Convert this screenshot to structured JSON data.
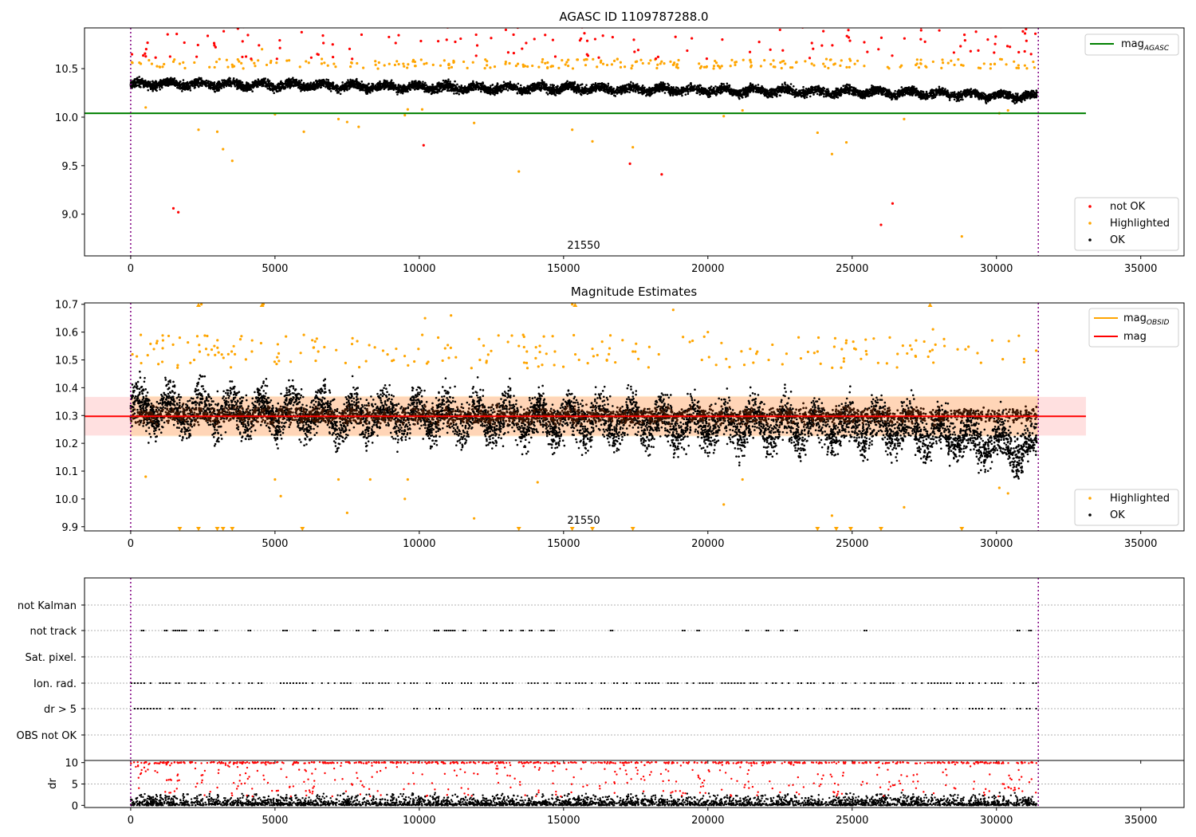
{
  "chart_data": [
    {
      "type": "scatter",
      "title": "AGASC ID 1109787288.0",
      "xlabel": "",
      "ylabel": "",
      "xlim": [
        -1600,
        36500
      ],
      "ylim": [
        8.57,
        10.92
      ],
      "xticks": [
        0,
        5000,
        10000,
        15000,
        20000,
        25000,
        30000,
        35000
      ],
      "yticks": [
        9.0,
        9.5,
        10.0,
        10.5
      ],
      "vlines": [
        0,
        31450
      ],
      "annotation": "21550",
      "annotation_x": 15750,
      "reference_line": {
        "name": "mag$_{AGASC}$",
        "value": 10.04,
        "x_range": [
          -1600,
          33100
        ],
        "color": "#008000"
      },
      "legend_top": "top-right",
      "legend_bottom": "bottom-right",
      "legend": [
        {
          "label": "mag",
          "sub": "AGASC",
          "kind": "line",
          "color": "#008000"
        },
        {
          "label": "not OK",
          "kind": "point",
          "color": "#ff0000"
        },
        {
          "label": "Highlighted",
          "kind": "point",
          "color": "#ffa500"
        },
        {
          "label": "OK",
          "kind": "point",
          "color": "#000000"
        }
      ],
      "series": [
        {
          "name": "OK",
          "color": "#000000",
          "x": [
            0,
            1500,
            3000,
            4500,
            6000,
            7500,
            9000,
            10500,
            12000,
            13500,
            15000,
            16500,
            18000,
            19500,
            21000,
            22500,
            24000,
            25500,
            27000,
            28500,
            30000,
            31400
          ],
          "values": [
            10.34,
            10.34,
            10.34,
            10.33,
            10.33,
            10.32,
            10.31,
            10.31,
            10.3,
            10.3,
            10.3,
            10.29,
            10.29,
            10.28,
            10.27,
            10.27,
            10.26,
            10.26,
            10.25,
            10.24,
            10.22,
            10.21
          ],
          "spread": 0.07
        },
        {
          "name": "Highlighted",
          "color": "#ffa500",
          "x": [
            60,
            350,
            520,
            1700,
            2350,
            3000,
            3200,
            3520,
            4550,
            5000,
            6000,
            7200,
            7500,
            7900,
            9500,
            9600,
            10100,
            11200,
            11900,
            13450,
            13600,
            15300,
            16000,
            17400,
            20550,
            21200,
            23800,
            24300,
            24800,
            26800,
            28800,
            30100,
            30400
          ],
          "values": [
            10.56,
            10.55,
            10.1,
            10.55,
            9.87,
            9.85,
            9.67,
            9.55,
            10.7,
            10.03,
            9.85,
            9.98,
            9.95,
            9.9,
            10.02,
            10.08,
            10.08,
            10.57,
            9.94,
            9.44,
            10.54,
            9.87,
            9.75,
            9.69,
            10.01,
            10.07,
            9.84,
            9.62,
            9.74,
            9.98,
            8.77,
            10.04,
            10.07
          ]
        },
        {
          "name": "not OK",
          "color": "#ff0000",
          "x": [
            1480,
            1650,
            7000,
            8000,
            10150,
            13000,
            17300,
            18400,
            20500,
            22500,
            26000,
            26400,
            29700,
            31200,
            31350
          ],
          "values": [
            9.06,
            9.02,
            10.75,
            10.85,
            9.71,
            10.9,
            9.52,
            9.41,
            10.8,
            10.9,
            8.89,
            9.11,
            10.8,
            10.65,
            10.86
          ]
        }
      ]
    },
    {
      "type": "scatter",
      "title": "Magnitude Estimates",
      "xlabel": "",
      "ylabel": "",
      "xlim": [
        -1600,
        36500
      ],
      "ylim": [
        9.885,
        10.705
      ],
      "xticks": [
        0,
        5000,
        10000,
        15000,
        20000,
        25000,
        30000,
        35000
      ],
      "yticks": [
        9.9,
        10.0,
        10.1,
        10.2,
        10.3,
        10.4,
        10.5,
        10.6,
        10.7
      ],
      "vlines": [
        0,
        31450
      ],
      "annotation": "21550",
      "annotation_x": 15750,
      "mag_line": {
        "value": 10.297,
        "x_range": [
          -1600,
          33100
        ],
        "color": "#ff0000"
      },
      "mag_band": {
        "low": 10.228,
        "high": 10.367,
        "x_range": [
          -1600,
          33100
        ]
      },
      "obsid_band": [
        {
          "x": [
            0,
            8500
          ],
          "low": 10.225,
          "high": 10.37
        },
        {
          "x": [
            8500,
            31450
          ],
          "low": 10.225,
          "high": 10.37
        }
      ],
      "legend_top": "top-right",
      "legend_bottom": "bottom-right",
      "legend": [
        {
          "label": "mag",
          "sub": "OBSID",
          "kind": "line",
          "color": "#ffa500"
        },
        {
          "label": "mag",
          "kind": "line",
          "color": "#ff0000"
        },
        {
          "label": "Highlighted",
          "kind": "point",
          "color": "#ffa500"
        },
        {
          "label": "OK",
          "kind": "point",
          "color": "#000000"
        }
      ],
      "series": [
        {
          "name": "OK",
          "color": "#000000",
          "x": [
            0,
            1500,
            3000,
            4500,
            6000,
            7500,
            9000,
            10500,
            12000,
            13500,
            15000,
            16500,
            18000,
            19500,
            21000,
            22500,
            24000,
            25500,
            27000,
            28500,
            30000,
            31400
          ],
          "values": [
            10.33,
            10.32,
            10.32,
            10.31,
            10.31,
            10.3,
            10.3,
            10.3,
            10.29,
            10.29,
            10.28,
            10.28,
            10.28,
            10.27,
            10.27,
            10.26,
            10.26,
            10.26,
            10.25,
            10.23,
            10.2,
            10.18
          ],
          "spread": 0.12
        },
        {
          "name": "Highlighted",
          "color": "#ffa500",
          "x": [
            60,
            350,
            520,
            900,
            1700,
            2200,
            2450,
            2900,
            3500,
            4200,
            4600,
            5000,
            5200,
            6000,
            6500,
            7200,
            7500,
            8300,
            9200,
            9500,
            9600,
            10200,
            11100,
            11900,
            12100,
            13450,
            13600,
            14100,
            14700,
            15300,
            16000,
            16500,
            17400,
            18300,
            18800,
            20000,
            20550,
            21200,
            23800,
            24300,
            24800,
            25500,
            26800,
            27800,
            28200,
            30100,
            30400
          ],
          "values": [
            10.52,
            10.59,
            10.08,
            10.56,
            10.58,
            10.5,
            10.7,
            10.55,
            10.53,
            10.53,
            10.7,
            10.07,
            10.01,
            10.59,
            10.53,
            10.07,
            9.95,
            10.07,
            10.54,
            10.0,
            10.07,
            10.65,
            10.66,
            9.93,
            10.5,
            10.55,
            10.59,
            10.06,
            10.53,
            10.7,
            10.54,
            10.5,
            10.53,
            10.52,
            10.68,
            10.6,
            9.98,
            10.07,
            10.53,
            9.94,
            10.57,
            10.52,
            9.97,
            10.61,
            10.55,
            10.04,
            10.02
          ]
        },
        {
          "name": "Highlighted (clipped below)",
          "color": "#ffa500",
          "x": [
            1700,
            2350,
            3000,
            3200,
            3520,
            5950,
            13450,
            15300,
            16000,
            17400,
            23800,
            24450,
            24950,
            26000,
            28800
          ],
          "values": [
            9.89,
            9.89,
            9.89,
            9.89,
            9.89,
            9.89,
            9.89,
            9.89,
            9.89,
            9.89,
            9.89,
            9.89,
            9.89,
            9.89,
            9.89
          ],
          "marker": "triangle-down"
        },
        {
          "name": "Highlighted (clipped above)",
          "color": "#ffa500",
          "x": [
            2350,
            4550,
            15400,
            27700
          ],
          "values": [
            10.7,
            10.7,
            10.7,
            10.7
          ],
          "marker": "triangle-up"
        }
      ]
    },
    {
      "type": "scatter",
      "title": "",
      "xlabel": "",
      "ylabel": "",
      "xlim": [
        -1600,
        36500
      ],
      "vlines": [
        0,
        31450
      ],
      "categories": [
        "not Kalman",
        "not track",
        "Sat. pixel.",
        "Ion. rad.",
        "dr > 5",
        "OBS not OK"
      ],
      "flag_rows": {
        "not Kalman": [],
        "not track": [
          [
            350,
            450
          ],
          [
            1150,
            1250
          ],
          [
            1450,
            1700
          ],
          [
            1750,
            1900
          ],
          [
            2350,
            2500
          ],
          [
            2900,
            3000
          ],
          [
            4050,
            4150
          ],
          [
            5250,
            5400
          ],
          [
            6300,
            6400
          ],
          [
            7050,
            7200
          ],
          [
            7800,
            7900
          ],
          [
            8300,
            8400
          ],
          [
            8800,
            8900
          ],
          [
            10500,
            10700
          ],
          [
            10850,
            11200
          ],
          [
            11500,
            11600
          ],
          [
            12200,
            12300
          ],
          [
            12800,
            12900
          ],
          [
            13100,
            13200
          ],
          [
            13500,
            13600
          ],
          [
            13800,
            13900
          ],
          [
            14200,
            14300
          ],
          [
            14500,
            14700
          ],
          [
            16600,
            16700
          ],
          [
            19100,
            19200
          ],
          [
            19600,
            19700
          ],
          [
            21300,
            21400
          ],
          [
            22000,
            22100
          ],
          [
            22500,
            22600
          ],
          [
            23000,
            23100
          ],
          [
            25400,
            25500
          ],
          [
            30700,
            30800
          ],
          [
            31100,
            31200
          ]
        ],
        "Sat. pixel.": [],
        "Ion. rad.": "dense",
        "dr > 5": "dense",
        "OBS not OK": []
      }
    },
    {
      "type": "scatter",
      "title": "",
      "xlabel": "",
      "ylabel": "dr",
      "xlim": [
        -1600,
        36500
      ],
      "ylim": [
        -0.5,
        10.5
      ],
      "yticks": [
        0,
        5,
        10
      ],
      "vlines": [
        0,
        31450
      ],
      "series": [
        {
          "name": "OK",
          "color": "#000000",
          "range": [
            0,
            3
          ]
        },
        {
          "name": "not OK",
          "color": "#ff0000",
          "range": [
            5,
            10
          ]
        }
      ]
    }
  ]
}
